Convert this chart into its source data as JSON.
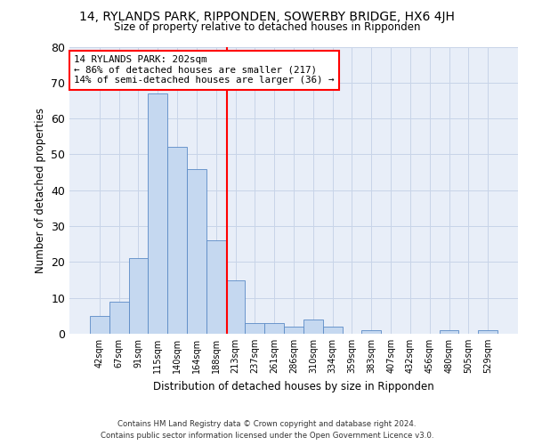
{
  "title": "14, RYLANDS PARK, RIPPONDEN, SOWERBY BRIDGE, HX6 4JH",
  "subtitle": "Size of property relative to detached houses in Ripponden",
  "xlabel": "Distribution of detached houses by size in Ripponden",
  "ylabel": "Number of detached properties",
  "footer_line1": "Contains HM Land Registry data © Crown copyright and database right 2024.",
  "footer_line2": "Contains public sector information licensed under the Open Government Licence v3.0.",
  "bar_values": [
    5,
    9,
    21,
    67,
    52,
    46,
    26,
    15,
    3,
    3,
    2,
    4,
    2,
    0,
    1,
    0,
    0,
    0,
    1,
    0,
    1
  ],
  "bin_labels": [
    "42sqm",
    "67sqm",
    "91sqm",
    "115sqm",
    "140sqm",
    "164sqm",
    "188sqm",
    "213sqm",
    "237sqm",
    "261sqm",
    "286sqm",
    "310sqm",
    "334sqm",
    "359sqm",
    "383sqm",
    "407sqm",
    "432sqm",
    "456sqm",
    "480sqm",
    "505sqm",
    "529sqm"
  ],
  "bar_color": "#c5d8f0",
  "bar_edge_color": "#5a8ac6",
  "grid_color": "#c8d4e8",
  "background_color": "#e8eef8",
  "red_line_x": 6.56,
  "annotation_text": "14 RYLANDS PARK: 202sqm\n← 86% of detached houses are smaller (217)\n14% of semi-detached houses are larger (36) →",
  "annotation_box_color": "white",
  "annotation_box_edge": "red",
  "ylim": [
    0,
    80
  ],
  "yticks": [
    0,
    10,
    20,
    30,
    40,
    50,
    60,
    70,
    80
  ],
  "title_fontsize": 10,
  "subtitle_fontsize": 9
}
